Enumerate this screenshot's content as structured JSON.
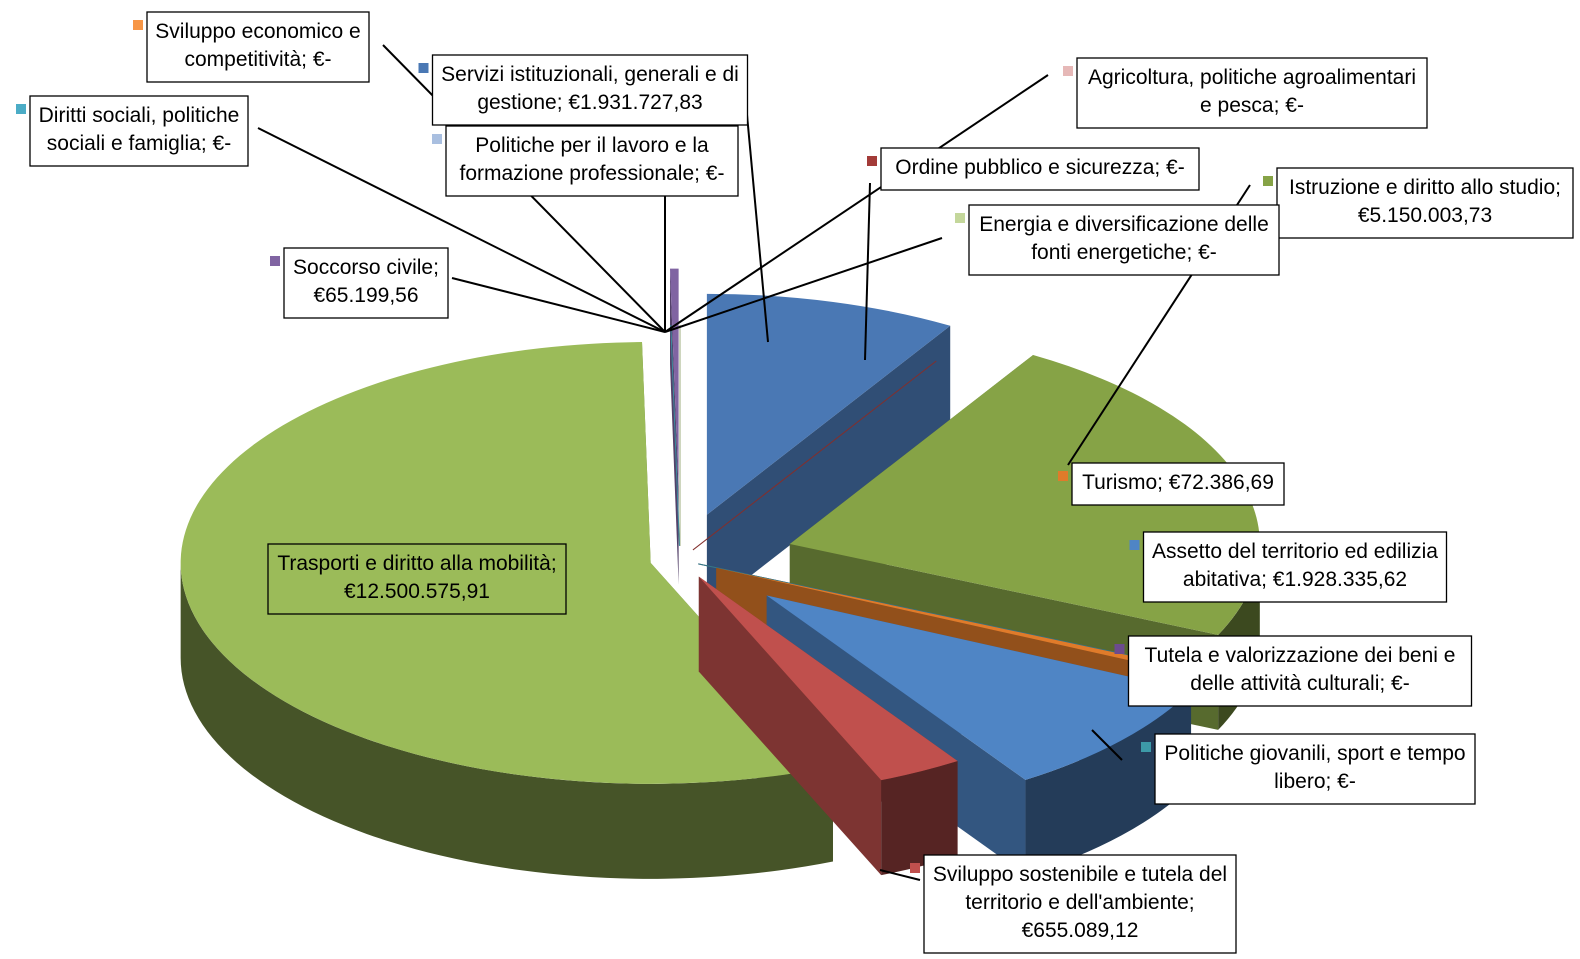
{
  "chart_data": {
    "type": "pie",
    "style": "3d-exploded",
    "title": "",
    "legend": "none",
    "currency_format": "€",
    "slices": [
      {
        "name": "Servizi istituzionali, generali e di gestione",
        "value": 1931727.83,
        "label": [
          "Servizi istituzionali, generali e di",
          "gestione;  €1.931.727,83"
        ],
        "color": "#4a78b4"
      },
      {
        "name": "Ordine pubblico e sicurezza",
        "value": 0,
        "label": [
          "Ordine pubblico e sicurezza;  €-"
        ],
        "color": "#a33b38"
      },
      {
        "name": "Istruzione e diritto allo studio",
        "value": 5150003.73,
        "label": [
          "Istruzione e diritto allo studio;",
          "€5.150.003,73"
        ],
        "color": "#86a346"
      },
      {
        "name": "Tutela e valorizzazione dei beni e delle attività culturali",
        "value": 0,
        "label": [
          "Tutela e valorizzazione dei beni e",
          "delle attività culturali;  €-"
        ],
        "color": "#6c4b8f"
      },
      {
        "name": "Politiche giovanili, sport e tempo libero",
        "value": 0,
        "label": [
          "Politiche giovanili, sport e tempo",
          "libero;  €-"
        ],
        "color": "#3d9aa8"
      },
      {
        "name": "Turismo",
        "value": 72386.69,
        "label": [
          "Turismo;  €72.386,69"
        ],
        "color": "#e07b2a"
      },
      {
        "name": "Assetto del territorio ed edilizia abitativa",
        "value": 1928335.62,
        "label": [
          "Assetto del territorio ed edilizia",
          "abitativa;  €1.928.335,62"
        ],
        "color": "#4f85c5"
      },
      {
        "name": "Sviluppo sostenibile e tutela del territorio e dell'ambiente",
        "value": 655089.12,
        "label": [
          "Sviluppo  sostenibile e tutela del",
          "territorio e dell'ambiente;",
          "€655.089,12"
        ],
        "color": "#c0504d"
      },
      {
        "name": "Trasporti e diritto alla mobilità",
        "value": 12500575.91,
        "label": [
          "Trasporti e diritto alla mobilità;",
          "€12.500.575,91"
        ],
        "color": "#9bbb59"
      },
      {
        "name": "Diritti sociali, politiche sociali e famiglia",
        "value": 0,
        "label": [
          "Diritti sociali, politiche",
          "sociali e famiglia;  €-"
        ],
        "color": "#4bacc6"
      },
      {
        "name": "Soccorso civile",
        "value": 65199.56,
        "label": [
          "Soccorso civile;",
          "€65.199,56"
        ],
        "color": "#8064a2"
      },
      {
        "name": "Sviluppo economico e competitività",
        "value": 0,
        "label": [
          "Sviluppo  economico e",
          "competitività;  €-"
        ],
        "color": "#f79646"
      },
      {
        "name": "Politiche per il lavoro e la formazione professionale",
        "value": 0,
        "label": [
          "Politiche per il lavoro e la",
          "formazione professionale;  €-"
        ],
        "color": "#a9bfe0"
      },
      {
        "name": "Agricoltura, politiche agroalimentari e pesca",
        "value": 0,
        "label": [
          "Agricoltura, politiche agroalimentari",
          "e pesca;  €-"
        ],
        "color": "#e6b8b7"
      },
      {
        "name": "Energia e diversificazione delle fonti energetiche",
        "value": 0,
        "label": [
          "Energia e diversificazione delle",
          "fonti energetiche;  €-"
        ],
        "color": "#c4d79b"
      }
    ]
  }
}
